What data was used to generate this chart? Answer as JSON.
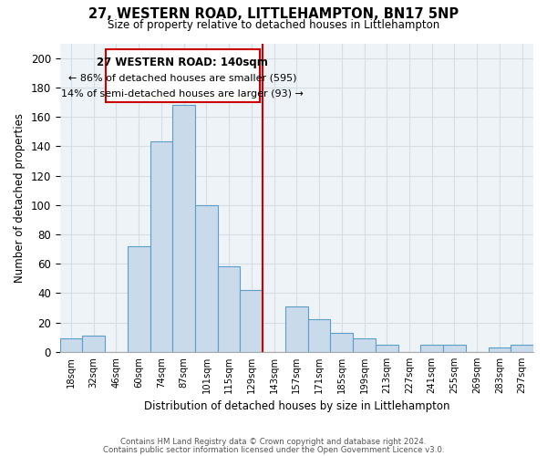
{
  "title": "27, WESTERN ROAD, LITTLEHAMPTON, BN17 5NP",
  "subtitle": "Size of property relative to detached houses in Littlehampton",
  "xlabel": "Distribution of detached houses by size in Littlehampton",
  "ylabel": "Number of detached properties",
  "footer_line1": "Contains HM Land Registry data © Crown copyright and database right 2024.",
  "footer_line2": "Contains public sector information licensed under the Open Government Licence v3.0.",
  "bin_labels": [
    "18sqm",
    "32sqm",
    "46sqm",
    "60sqm",
    "74sqm",
    "87sqm",
    "101sqm",
    "115sqm",
    "129sqm",
    "143sqm",
    "157sqm",
    "171sqm",
    "185sqm",
    "199sqm",
    "213sqm",
    "227sqm",
    "241sqm",
    "255sqm",
    "269sqm",
    "283sqm",
    "297sqm"
  ],
  "bar_heights": [
    9,
    11,
    0,
    72,
    143,
    168,
    100,
    58,
    42,
    0,
    31,
    22,
    13,
    9,
    5,
    0,
    5,
    5,
    0,
    3,
    5
  ],
  "bar_color": "#c9daea",
  "bar_edge_color": "#5b9ec9",
  "ylim": [
    0,
    210
  ],
  "yticks": [
    0,
    20,
    40,
    60,
    80,
    100,
    120,
    140,
    160,
    180,
    200
  ],
  "vline_color": "#cc0000",
  "annotation_title": "27 WESTERN ROAD: 140sqm",
  "annotation_line1": "← 86% of detached houses are smaller (595)",
  "annotation_line2": "14% of semi-detached houses are larger (93) →",
  "grid_color": "#d5dde5",
  "bg_color": "#eef3f8"
}
